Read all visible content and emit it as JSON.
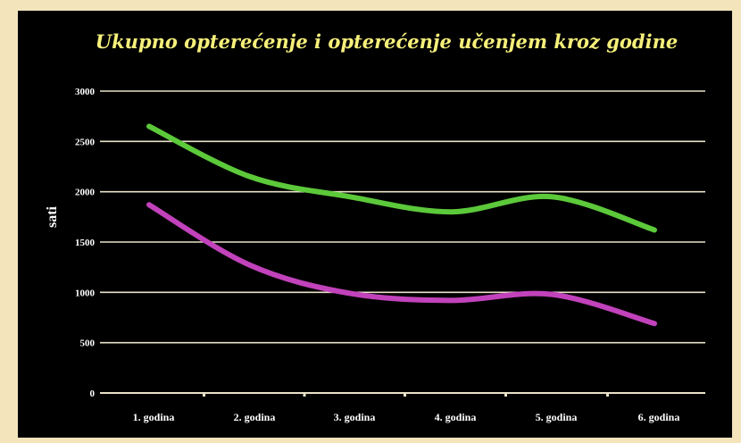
{
  "chart_data": {
    "type": "line",
    "title": "Ukupno opterećenje i opterećenje učenjem kroz godine",
    "xlabel": "",
    "ylabel": "sati",
    "categories": [
      "1. godina",
      "2. godina",
      "3. godina",
      "4. godina",
      "5. godina",
      "6. godina"
    ],
    "ylim": [
      0,
      3000
    ],
    "yticks": [
      0,
      500,
      1000,
      1500,
      2000,
      2500,
      3000
    ],
    "grid": true,
    "series": [
      {
        "values": [
          2650,
          2150,
          1950,
          1800,
          1950,
          1620
        ],
        "color": "#5cc93a"
      },
      {
        "values": [
          1870,
          1270,
          990,
          920,
          980,
          690
        ],
        "color": "#c142bb"
      }
    ]
  },
  "colors": {
    "background": "#f3e4bc",
    "panel": "#000000",
    "title": "#f6f07a",
    "grid": "#e9e2c8",
    "text": "#ffffff"
  }
}
